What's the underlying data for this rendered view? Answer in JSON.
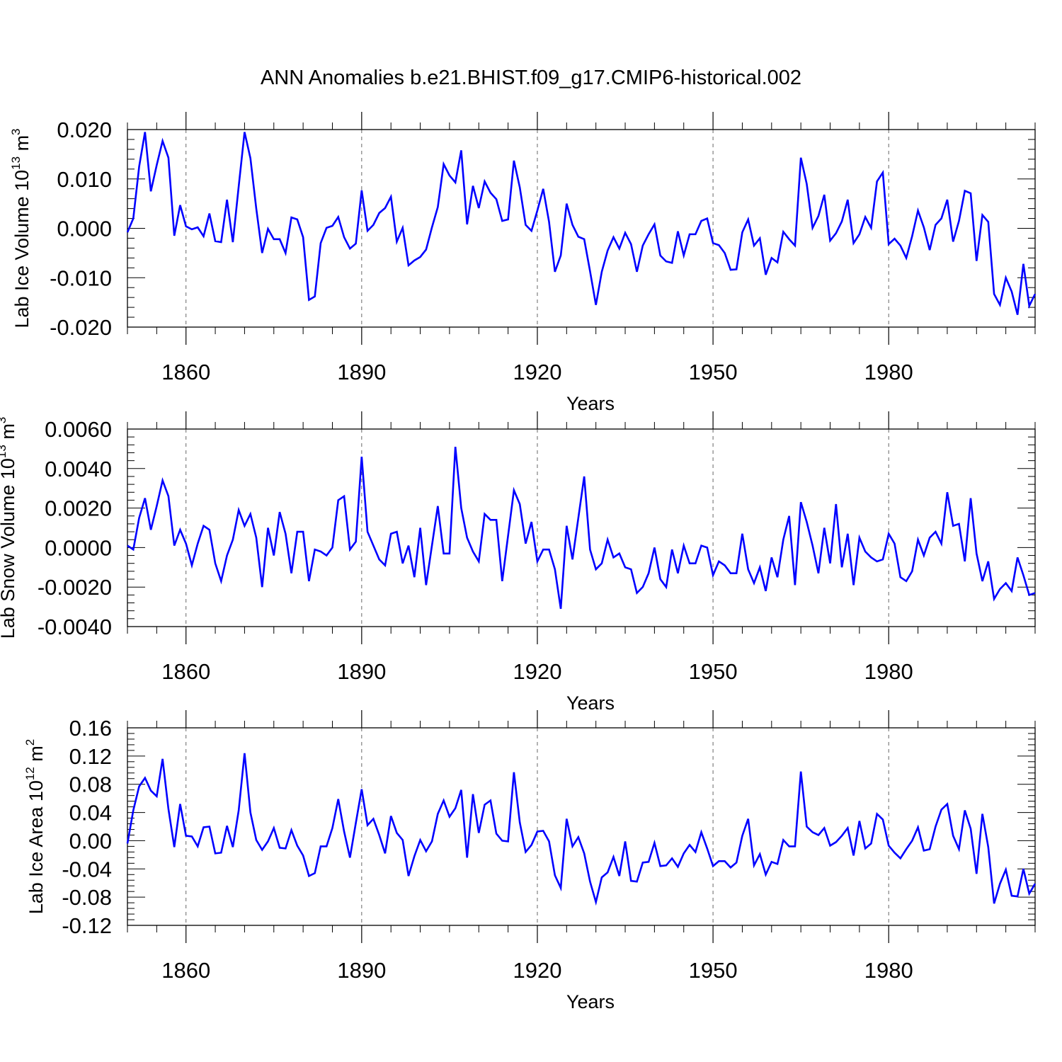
{
  "title": "ANN Anomalies b.e21.BHIST.f09_g17.CMIP6-historical.002",
  "line_color": "#0000ff",
  "chart_data": [
    {
      "type": "line",
      "ylabel_main": "Lab Ice Volume 10",
      "ylabel_sup": "13",
      "ylabel_unit": " m",
      "ylabel_unit_sup": "3",
      "xlabel": "Years",
      "xlim": [
        1850,
        2005
      ],
      "ylim": [
        -0.02,
        0.02
      ],
      "xticks": [
        1860,
        1890,
        1920,
        1950,
        1980
      ],
      "xtick_labels": [
        "1860",
        "1890",
        "1920",
        "1950",
        "1980"
      ],
      "yticks": [
        -0.02,
        -0.01,
        0.0,
        0.01,
        0.02
      ],
      "ytick_labels": [
        "-0.020",
        "-0.010",
        "0.000",
        "0.010",
        "0.020"
      ],
      "x_start": 1850,
      "values": [
        -0.0008,
        0.002,
        0.0125,
        0.0195,
        0.0075,
        0.0128,
        0.0177,
        0.0143,
        -0.0015,
        0.0047,
        0.0004,
        -0.0002,
        0.0002,
        -0.0016,
        0.003,
        -0.0026,
        -0.0028,
        0.0058,
        -0.0028,
        0.0085,
        0.0195,
        0.0142,
        0.004,
        -0.005,
        -0.0001,
        -0.0022,
        -0.0022,
        -0.005,
        0.0022,
        0.0018,
        -0.0018,
        -0.0145,
        -0.0138,
        -0.003,
        0.0001,
        0.0005,
        0.0023,
        -0.0018,
        -0.0041,
        -0.0031,
        0.0077,
        -0.0005,
        0.0007,
        0.0031,
        0.0041,
        0.0064,
        -0.0027,
        0.0001,
        -0.0075,
        -0.0065,
        -0.0058,
        -0.0043,
        0.0002,
        0.0043,
        0.013,
        0.0107,
        0.0093,
        0.0158,
        0.0008,
        0.0086,
        0.0041,
        0.0095,
        0.0072,
        0.0059,
        0.0015,
        0.0018,
        0.0137,
        0.0083,
        0.0007,
        -0.0005,
        0.0036,
        0.008,
        0.0013,
        -0.0088,
        -0.0055,
        0.005,
        0.0007,
        -0.0017,
        -0.0022,
        -0.0087,
        -0.0155,
        -0.0088,
        -0.0045,
        -0.0018,
        -0.0041,
        -0.0009,
        -0.0032,
        -0.0088,
        -0.0035,
        -0.0012,
        0.0008,
        -0.0055,
        -0.0067,
        -0.007,
        -0.0006,
        -0.0055,
        -0.0012,
        -0.0012,
        0.0015,
        0.002,
        -0.003,
        -0.0034,
        -0.005,
        -0.0084,
        -0.0083,
        -0.0008,
        0.0018,
        -0.0035,
        -0.002,
        -0.0094,
        -0.006,
        -0.0069,
        -0.0007,
        -0.0022,
        -0.0035,
        0.0143,
        0.009,
        0.0001,
        0.0025,
        0.0068,
        -0.0025,
        -0.001,
        0.0014,
        0.0058,
        -0.003,
        -0.0012,
        0.0023,
        0.0001,
        0.0095,
        0.0113,
        -0.0032,
        -0.0021,
        -0.0035,
        -0.006,
        -0.0016,
        0.0036,
        0.0002,
        -0.0044,
        0.0007,
        0.002,
        0.0058,
        -0.0027,
        0.0015,
        0.0076,
        0.0071,
        -0.0066,
        0.0027,
        0.0013,
        -0.0133,
        -0.0155,
        -0.01,
        -0.0128,
        -0.0175,
        -0.0072,
        -0.0157,
        -0.0133
      ]
    },
    {
      "type": "line",
      "ylabel_main": "Lab Snow Volume 10",
      "ylabel_sup": "13",
      "ylabel_unit": " m",
      "ylabel_unit_sup": "3",
      "xlabel": "Years",
      "xlim": [
        1850,
        2005
      ],
      "ylim": [
        -0.004,
        0.006
      ],
      "xticks": [
        1860,
        1890,
        1920,
        1950,
        1980
      ],
      "xtick_labels": [
        "1860",
        "1890",
        "1920",
        "1950",
        "1980"
      ],
      "yticks": [
        -0.004,
        -0.002,
        0.0,
        0.002,
        0.004,
        0.006
      ],
      "ytick_labels": [
        "-0.0040",
        "-0.0020",
        "0.0000",
        "0.0020",
        "0.0040",
        "0.0060"
      ],
      "x_start": 1850,
      "values": [
        0.0001,
        -0.0001,
        0.0015,
        0.0025,
        0.0009,
        0.0021,
        0.0034,
        0.0026,
        0.0001,
        0.0009,
        0.0002,
        -0.0009,
        0.0002,
        0.0011,
        0.0009,
        -0.0008,
        -0.0017,
        -0.0004,
        0.0004,
        0.0019,
        0.0011,
        0.0017,
        0.0005,
        -0.002,
        0.001,
        -0.0004,
        0.0018,
        0.0007,
        -0.0013,
        0.0008,
        0.0008,
        -0.0017,
        -0.0001,
        -0.0002,
        -0.0004,
        0.0,
        0.0024,
        0.0026,
        -0.0001,
        0.0003,
        0.0046,
        0.0008,
        0.0001,
        -0.0006,
        -0.0009,
        0.0007,
        0.0008,
        -0.0008,
        0.0001,
        -0.0015,
        0.001,
        -0.0019,
        0.0001,
        0.0021,
        -0.0003,
        -0.0003,
        0.0051,
        0.002,
        0.0005,
        -0.0002,
        -0.0007,
        0.0017,
        0.0014,
        0.0014,
        -0.0017,
        0.0006,
        0.0029,
        0.0022,
        0.0002,
        0.0013,
        -0.0007,
        -0.0001,
        -0.0001,
        -0.0011,
        -0.0031,
        0.0011,
        -0.0006,
        0.0015,
        0.0036,
        -0.0001,
        -0.0011,
        -0.0008,
        0.0004,
        -0.0005,
        -0.0003,
        -0.001,
        -0.0011,
        -0.0023,
        -0.002,
        -0.0013,
        0.0,
        -0.0016,
        -0.002,
        -0.0001,
        -0.0013,
        0.0001,
        -0.0008,
        -0.0008,
        0.0001,
        0.0,
        -0.0014,
        -0.0007,
        -0.0009,
        -0.0013,
        -0.0013,
        0.0007,
        -0.0011,
        -0.0018,
        -0.001,
        -0.0022,
        -0.0005,
        -0.0015,
        0.0004,
        0.0016,
        -0.0019,
        0.0023,
        0.0013,
        0.0001,
        -0.0013,
        0.001,
        -0.0008,
        0.0022,
        -0.001,
        0.0007,
        -0.0019,
        0.0005,
        -0.0002,
        -0.0005,
        -0.0007,
        -0.0006,
        0.0007,
        0.0002,
        -0.0015,
        -0.0017,
        -0.0012,
        0.0004,
        -0.0004,
        0.0005,
        0.0008,
        0.0002,
        0.0028,
        0.0011,
        0.0012,
        -0.0007,
        0.0025,
        -0.0003,
        -0.0017,
        -0.0007,
        -0.0026,
        -0.0021,
        -0.0018,
        -0.0022,
        -0.0005,
        -0.0014,
        -0.0024,
        -0.0023
      ]
    },
    {
      "type": "line",
      "ylabel_main": "Lab Ice Area 10",
      "ylabel_sup": "12",
      "ylabel_unit": " m",
      "ylabel_unit_sup": "2",
      "xlabel": "Years",
      "xlim": [
        1850,
        2005
      ],
      "ylim": [
        -0.12,
        0.16
      ],
      "xticks": [
        1860,
        1890,
        1920,
        1950,
        1980
      ],
      "xtick_labels": [
        "1860",
        "1890",
        "1920",
        "1950",
        "1980"
      ],
      "yticks": [
        -0.12,
        -0.08,
        -0.04,
        0.0,
        0.04,
        0.08,
        0.12,
        0.16
      ],
      "ytick_labels": [
        "-0.12",
        "-0.08",
        "-0.04",
        "0.00",
        "0.04",
        "0.08",
        "0.12",
        "0.16"
      ],
      "x_start": 1850,
      "values": [
        -0.004,
        0.043,
        0.077,
        0.089,
        0.071,
        0.063,
        0.116,
        0.045,
        -0.009,
        0.052,
        0.007,
        0.006,
        -0.008,
        0.019,
        0.02,
        -0.018,
        -0.017,
        0.021,
        -0.009,
        0.043,
        0.124,
        0.04,
        0.001,
        -0.013,
        -0.001,
        0.018,
        -0.01,
        -0.011,
        0.015,
        -0.007,
        -0.021,
        -0.05,
        -0.046,
        -0.008,
        -0.008,
        0.018,
        0.059,
        0.013,
        -0.024,
        0.025,
        0.073,
        0.022,
        0.031,
        0.008,
        -0.018,
        0.035,
        0.011,
        0.001,
        -0.05,
        -0.022,
        0.001,
        -0.015,
        -0.001,
        0.038,
        0.057,
        0.034,
        0.046,
        0.072,
        -0.024,
        0.066,
        0.011,
        0.051,
        0.057,
        0.01,
        0.0,
        -0.001,
        0.097,
        0.026,
        -0.016,
        -0.006,
        0.013,
        0.014,
        -0.001,
        -0.049,
        -0.067,
        0.031,
        -0.008,
        0.005,
        -0.018,
        -0.058,
        -0.087,
        -0.052,
        -0.045,
        -0.023,
        -0.05,
        -0.001,
        -0.057,
        -0.058,
        -0.031,
        -0.03,
        -0.003,
        -0.036,
        -0.035,
        -0.025,
        -0.037,
        -0.018,
        -0.006,
        -0.016,
        0.012,
        -0.011,
        -0.036,
        -0.029,
        -0.029,
        -0.038,
        -0.031,
        0.007,
        0.031,
        -0.035,
        -0.019,
        -0.048,
        -0.03,
        -0.033,
        0.001,
        -0.008,
        -0.008,
        0.098,
        0.02,
        0.012,
        0.008,
        0.018,
        -0.007,
        -0.002,
        0.007,
        0.018,
        -0.021,
        0.028,
        -0.011,
        -0.004,
        0.038,
        0.03,
        -0.007,
        -0.017,
        -0.025,
        -0.012,
        0.0,
        0.019,
        -0.014,
        -0.012,
        0.02,
        0.044,
        0.052,
        0.007,
        -0.012,
        0.043,
        0.017,
        -0.047,
        0.038,
        -0.009,
        -0.089,
        -0.061,
        -0.041,
        -0.078,
        -0.079,
        -0.04,
        -0.075,
        -0.061
      ]
    }
  ]
}
